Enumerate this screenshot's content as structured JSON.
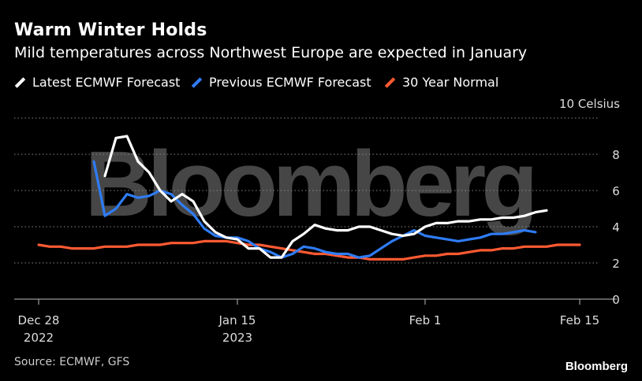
{
  "chart_data": {
    "type": "line",
    "title": "Warm Winter Holds",
    "subtitle": "Mild temperatures across Northwest Europe are expected in January",
    "unit_label": "10 Celsius",
    "ylim": [
      0,
      10
    ],
    "yticks": [
      0,
      2,
      4,
      6,
      8
    ],
    "yticklabels": [
      "0",
      "2",
      "4",
      "6",
      "8"
    ],
    "x_range_days": [
      0,
      49
    ],
    "xticks": [
      {
        "day": 0,
        "line1": "Dec 28",
        "line2": "2022"
      },
      {
        "day": 18,
        "line1": "Jan 15",
        "line2": "2023"
      },
      {
        "day": 35,
        "line1": "Feb 1",
        "line2": ""
      },
      {
        "day": 49,
        "line1": "Feb 15",
        "line2": ""
      }
    ],
    "series": [
      {
        "name": "Latest ECMWF Forecast",
        "color": "#ffffff",
        "x": [
          6,
          7,
          8,
          9,
          10,
          11,
          12,
          13,
          14,
          15,
          16,
          17,
          18,
          19,
          20,
          21,
          22,
          23,
          24,
          25,
          26,
          27,
          28,
          29,
          30,
          31,
          32,
          33,
          34,
          35,
          36,
          37,
          38,
          39,
          40,
          41,
          42,
          43,
          44,
          45,
          46
        ],
        "values": [
          6.8,
          8.9,
          9.0,
          7.6,
          7.0,
          6.0,
          5.4,
          5.8,
          5.4,
          4.3,
          3.7,
          3.4,
          3.3,
          2.8,
          2.8,
          2.3,
          2.3,
          3.2,
          3.6,
          4.1,
          3.9,
          3.8,
          3.8,
          4.0,
          4.0,
          3.8,
          3.6,
          3.5,
          3.6,
          4.0,
          4.2,
          4.2,
          4.3,
          4.3,
          4.4,
          4.4,
          4.5,
          4.5,
          4.6,
          4.8,
          4.9
        ]
      },
      {
        "name": "Previous ECMWF Forecast",
        "color": "#2f7cf6",
        "x": [
          5,
          6,
          7,
          8,
          9,
          10,
          11,
          12,
          13,
          14,
          15,
          16,
          17,
          18,
          19,
          20,
          21,
          22,
          23,
          24,
          25,
          26,
          27,
          28,
          29,
          30,
          31,
          32,
          33,
          34,
          35,
          36,
          37,
          38,
          39,
          40,
          41,
          42,
          43,
          44,
          45
        ],
        "values": [
          7.6,
          4.6,
          5.0,
          5.8,
          5.6,
          5.7,
          6.0,
          5.8,
          5.2,
          4.7,
          3.9,
          3.5,
          3.4,
          3.4,
          3.2,
          2.8,
          2.6,
          2.3,
          2.5,
          2.9,
          2.8,
          2.6,
          2.5,
          2.5,
          2.3,
          2.4,
          2.8,
          3.2,
          3.5,
          3.8,
          3.5,
          3.4,
          3.3,
          3.2,
          3.3,
          3.4,
          3.6,
          3.6,
          3.7,
          3.8,
          3.7
        ]
      },
      {
        "name": "30 Year Normal",
        "color": "#ff5a32",
        "x": [
          0,
          1,
          2,
          3,
          4,
          5,
          6,
          7,
          8,
          9,
          10,
          11,
          12,
          13,
          14,
          15,
          16,
          17,
          18,
          19,
          20,
          21,
          22,
          23,
          24,
          25,
          26,
          27,
          28,
          29,
          30,
          31,
          32,
          33,
          34,
          35,
          36,
          37,
          38,
          39,
          40,
          41,
          42,
          43,
          44,
          45,
          46,
          47,
          48,
          49
        ],
        "values": [
          3.0,
          2.9,
          2.9,
          2.8,
          2.8,
          2.8,
          2.9,
          2.9,
          2.9,
          3.0,
          3.0,
          3.0,
          3.1,
          3.1,
          3.1,
          3.2,
          3.2,
          3.2,
          3.1,
          3.0,
          3.0,
          2.9,
          2.8,
          2.7,
          2.6,
          2.5,
          2.5,
          2.4,
          2.3,
          2.3,
          2.2,
          2.2,
          2.2,
          2.2,
          2.3,
          2.4,
          2.4,
          2.5,
          2.5,
          2.6,
          2.7,
          2.7,
          2.8,
          2.8,
          2.9,
          2.9,
          2.9,
          3.0,
          3.0,
          3.0
        ]
      }
    ],
    "source": "Source: ECMWF, GFS",
    "brand": "Bloomberg",
    "watermark": "Bloomberg"
  }
}
